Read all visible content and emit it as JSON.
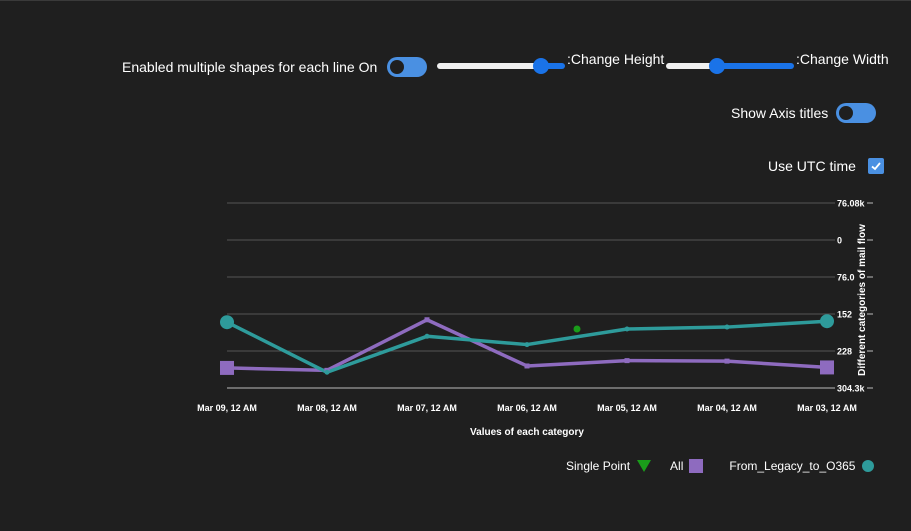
{
  "controls": {
    "shapes_label": "Enabled multiple shapes for each line On",
    "height_label": ":Change Height",
    "width_label": ":Change Width",
    "axis_titles_label": "Show Axis titles",
    "utc_label": "Use UTC time",
    "utc_checked": true,
    "height_slider_value": 0.86,
    "width_slider_value": 0.38
  },
  "colors": {
    "all": "#8e6bbf",
    "legacy": "#2e9b9b",
    "single": "#1a9c1a",
    "accent": "#1a73e8"
  },
  "chart_data": {
    "type": "line",
    "xlabel": "Values of each category",
    "ylabel": "Different categories of mail flow",
    "categories": [
      "Mar 09, 12 AM",
      "Mar 08, 12 AM",
      "Mar 07, 12 AM",
      "Mar 06, 12 AM",
      "Mar 05, 12 AM",
      "Mar 04, 12 AM",
      "Mar 03, 12 AM"
    ],
    "y_ticks": [
      "76.08k",
      "0",
      "76.0",
      "152",
      "228",
      "304.3k"
    ],
    "ylim": [
      76080,
      -304300
    ],
    "series": [
      {
        "name": "All",
        "marker": "square",
        "values": [
          -263000,
          -268000,
          -164000,
          -259000,
          -248000,
          -249000,
          -262000
        ]
      },
      {
        "name": "From_Legacy_to_O365",
        "marker": "circle",
        "values": [
          -169000,
          -272000,
          -198000,
          -215000,
          -183000,
          -179000,
          -167000
        ]
      },
      {
        "name": "Single Point",
        "marker": "triangle",
        "values": [
          null,
          null,
          null,
          null,
          null,
          null,
          null
        ]
      }
    ],
    "single_point": {
      "x": "Mar 06, 12 AM",
      "position": 0.5,
      "y": -183000
    },
    "legend": [
      "Single Point",
      "All",
      "From_Legacy_to_O365"
    ],
    "grid": true,
    "legend_position": "bottom-right"
  }
}
